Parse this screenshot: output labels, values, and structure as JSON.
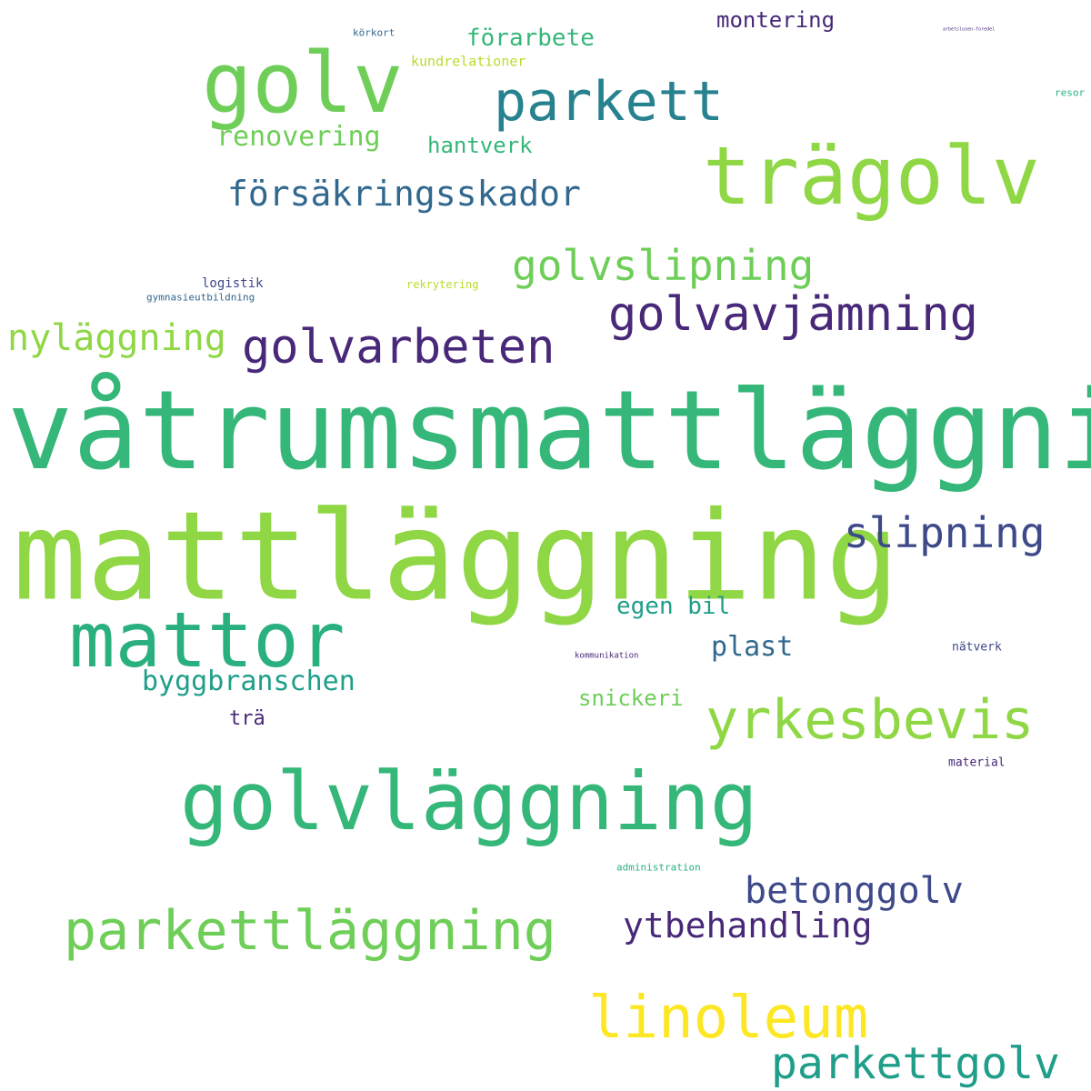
{
  "words": {
    "vatrumsmattlaggning": "våtrumsmattläggning",
    "mattlaggning": "mattläggning",
    "golv": "golv",
    "tragolv": "trägolv",
    "parkett": "parkett",
    "mattor": "mattor",
    "golvlaggning": "golvläggning",
    "yrkesbevis": "yrkesbevis",
    "linoleum": "linoleum",
    "parkettlaggning": "parkettläggning",
    "parkettgolv": "parkettgolv",
    "golvarbeten": "golvarbeten",
    "golvavjamning": "golvavjämning",
    "golvslipning": "golvslipning",
    "forsakringsskador": "försäkringsskador",
    "nylaggning": "nyläggning",
    "slipning": "slipning",
    "betonggolv": "betonggolv",
    "ytbehandling": "ytbehandling",
    "byggbranschen": "byggbranschen",
    "renovering": "renovering",
    "forarbete": "förarbete",
    "hantverk": "hantverk",
    "montering": "montering",
    "plast": "plast",
    "egen_bil": "egen bil",
    "snickeri": "snickeri",
    "tra": "trä",
    "kundrelationer": "kundrelationer",
    "korkort": "körkort",
    "logistik": "logistik",
    "gymnasieutbildning": "gymnasieutbildning",
    "rekrytering": "rekrytering",
    "natverk": "nätverk",
    "material": "material",
    "kommunikation": "kommunikation",
    "administration": "administration",
    "resor": "resor",
    "arbetslosen": "arbetslosen-foredel"
  },
  "palette": {
    "yellow": "#fde725",
    "lime": "#b5de2b",
    "light_green": "#8fd744",
    "green": "#6ece58",
    "mid_green": "#35b779",
    "teal_green": "#2ab07f",
    "teal": "#1f9e89",
    "cyan": "#26828e",
    "blue": "#31688e",
    "dark_blue": "#3e4989",
    "indigo": "#482878",
    "purple": "#440154"
  }
}
